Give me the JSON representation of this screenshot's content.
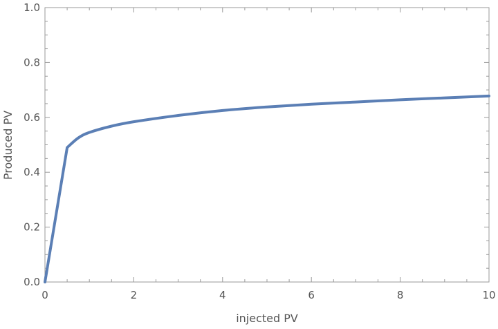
{
  "chart_data": {
    "type": "line",
    "title": "",
    "xlabel": "injected PV",
    "ylabel": "Produced PV",
    "xlim": [
      0,
      10
    ],
    "ylim": [
      0,
      1
    ],
    "grid": false,
    "x_ticks": [
      "0",
      "2",
      "4",
      "6",
      "8",
      "10"
    ],
    "y_ticks": [
      "0.0",
      "0.2",
      "0.4",
      "0.6",
      "0.8",
      "1.0"
    ],
    "series": [
      {
        "color": "#5b7fb5",
        "x": [
          0,
          0.5,
          0.75,
          1,
          1.5,
          2,
          3,
          4,
          5,
          6,
          7,
          8,
          9,
          10
        ],
        "y": [
          0,
          0.49,
          0.525,
          0.545,
          0.568,
          0.584,
          0.607,
          0.625,
          0.638,
          0.648,
          0.656,
          0.664,
          0.671,
          0.678
        ]
      }
    ],
    "colors": {
      "frame": "#999999",
      "text": "#555555"
    }
  }
}
